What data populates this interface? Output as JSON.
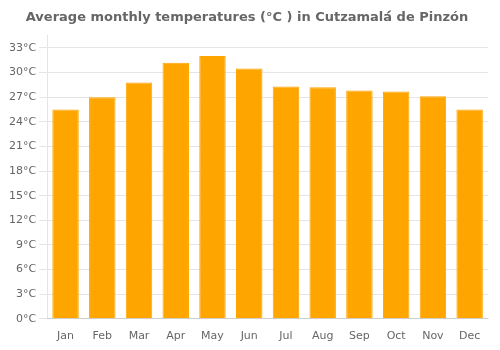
{
  "chart_data": {
    "type": "bar",
    "title": "Average monthly temperatures (°C ) in Cutzamalá́ de Pinzón",
    "categories": [
      "Jan",
      "Feb",
      "Mar",
      "Apr",
      "May",
      "Jun",
      "Jul",
      "Aug",
      "Sep",
      "Oct",
      "Nov",
      "Dec"
    ],
    "values": [
      25.5,
      27.0,
      28.8,
      31.2,
      32.0,
      30.5,
      28.3,
      28.2,
      27.8,
      27.7,
      27.1,
      25.5
    ],
    "color": "#FFA500",
    "ylim": [
      0,
      34.5
    ],
    "yticks": [
      {
        "value": 0,
        "label": "0°C"
      },
      {
        "value": 3,
        "label": "3°C"
      },
      {
        "value": 6,
        "label": "6°C"
      },
      {
        "value": 9,
        "label": "9°C"
      },
      {
        "value": 12,
        "label": "12°C"
      },
      {
        "value": 15,
        "label": "15°C"
      },
      {
        "value": 18,
        "label": "18°C"
      },
      {
        "value": 21,
        "label": "21°C"
      },
      {
        "value": 24,
        "label": "24°C"
      },
      {
        "value": 27,
        "label": "27°C"
      },
      {
        "value": 30,
        "label": "30°C"
      },
      {
        "value": 33,
        "label": "33°C"
      }
    ],
    "grid": true
  }
}
